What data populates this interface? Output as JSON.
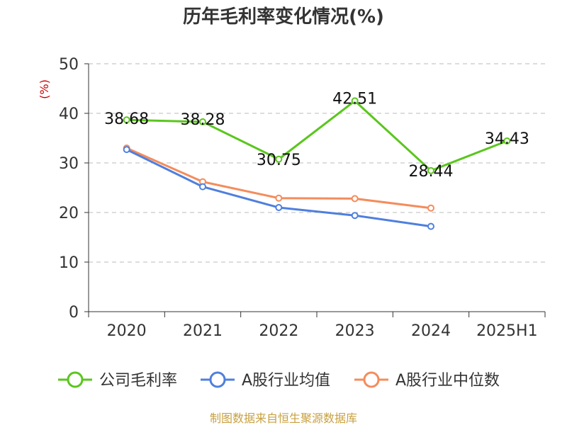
{
  "chart_data": {
    "type": "line",
    "title": "历年毛利率变化情况(%)",
    "ylabel": "(%)",
    "ylim": [
      0,
      50
    ],
    "yticks": [
      0,
      10,
      20,
      30,
      40,
      50
    ],
    "categories": [
      "2020",
      "2021",
      "2022",
      "2023",
      "2024",
      "2025H1"
    ],
    "grid": true,
    "legend_position": "bottom",
    "series": [
      {
        "name": "公司毛利率",
        "color": "#5ac61d",
        "values": [
          38.68,
          38.28,
          30.75,
          42.51,
          28.44,
          34.43
        ],
        "labels": [
          "38.68",
          "38.28",
          "30.75",
          "42.51",
          "28.44",
          "34.43"
        ]
      },
      {
        "name": "A股行业均值",
        "color": "#4f7fde",
        "values": [
          32.7,
          25.2,
          21.0,
          19.4,
          17.2,
          null
        ]
      },
      {
        "name": "A股行业中位数",
        "color": "#f48c5c",
        "values": [
          33.0,
          26.2,
          22.9,
          22.8,
          20.9,
          null
        ]
      }
    ],
    "source": "制图数据来自恒生聚源数据库"
  }
}
